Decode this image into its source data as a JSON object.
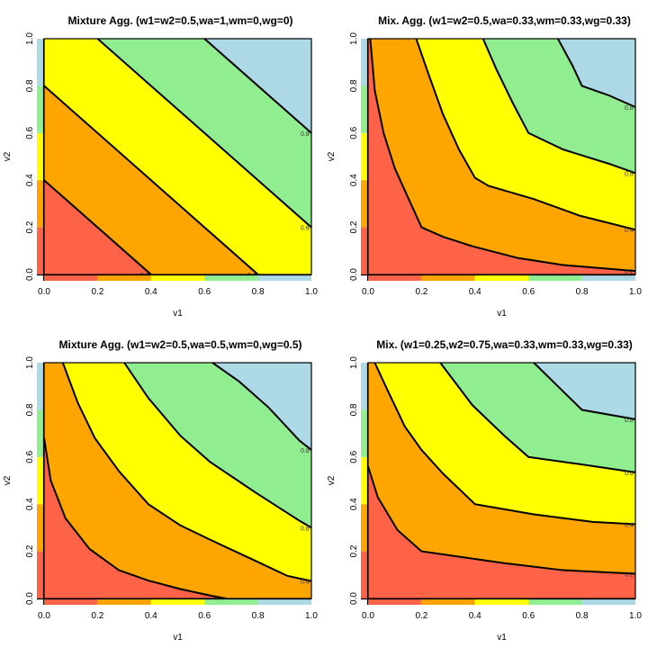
{
  "chart_data": [
    {
      "type": "contour",
      "title": "Mixture Agg. (w1=w2=0.5,wa=1,wm=0,wg=0)",
      "xlabel": "v1",
      "ylabel": "v2",
      "xlim": [
        0,
        1
      ],
      "ylim": [
        0,
        1
      ],
      "xticks": [
        "0.0",
        "0.2",
        "0.4",
        "0.6",
        "0.8",
        "1.0"
      ],
      "yticks": [
        "0.0",
        "0.2",
        "0.4",
        "0.6",
        "0.8",
        "1.0"
      ],
      "contours": [
        {
          "level": "0.2",
          "points": [
            [
              0,
              0.4
            ],
            [
              0.4,
              0
            ]
          ]
        },
        {
          "level": "0.4",
          "points": [
            [
              0,
              0.8
            ],
            [
              0.8,
              0
            ]
          ]
        },
        {
          "level": "0.6",
          "points": [
            [
              0.2,
              1
            ],
            [
              1,
              0.2
            ]
          ]
        },
        {
          "level": "0.8",
          "points": [
            [
              0.6,
              1
            ],
            [
              1,
              0.6
            ]
          ]
        }
      ]
    },
    {
      "type": "contour",
      "title": "Mix. Agg. (w1=w2=0.5,wa=0.33,wm=0.33,wg=0.33)",
      "xlabel": "v1",
      "ylabel": "v2",
      "xlim": [
        0,
        1
      ],
      "ylim": [
        0,
        1
      ],
      "xticks": [
        "0.0",
        "0.2",
        "0.4",
        "0.6",
        "0.8",
        "1.0"
      ],
      "yticks": [
        "0.0",
        "0.2",
        "0.4",
        "0.6",
        "0.8",
        "1.0"
      ],
      "contours": [
        {
          "level": "0.2",
          "points": [
            [
              0.008,
              1
            ],
            [
              0.025,
              0.78
            ],
            [
              0.058,
              0.6
            ],
            [
              0.1,
              0.45
            ],
            [
              0.16,
              0.3
            ],
            [
              0.2,
              0.2
            ],
            [
              0.28,
              0.16
            ],
            [
              0.39,
              0.12
            ],
            [
              0.56,
              0.07
            ],
            [
              0.73,
              0.04
            ],
            [
              1,
              0.015
            ]
          ]
        },
        {
          "level": "0.4",
          "points": [
            [
              0.18,
              1
            ],
            [
              0.226,
              0.85
            ],
            [
              0.28,
              0.68
            ],
            [
              0.34,
              0.53
            ],
            [
              0.4,
              0.41
            ],
            [
              0.45,
              0.376
            ],
            [
              0.62,
              0.32
            ],
            [
              0.79,
              0.25
            ],
            [
              1,
              0.19
            ]
          ]
        },
        {
          "level": "0.6",
          "points": [
            [
              0.43,
              1
            ],
            [
              0.48,
              0.87
            ],
            [
              0.54,
              0.73
            ],
            [
              0.6,
              0.6
            ],
            [
              0.73,
              0.53
            ],
            [
              0.9,
              0.47
            ],
            [
              1,
              0.43
            ]
          ]
        },
        {
          "level": "0.8",
          "points": [
            [
              0.71,
              1
            ],
            [
              0.765,
              0.885
            ],
            [
              0.8,
              0.8
            ],
            [
              0.9,
              0.76
            ],
            [
              1,
              0.71
            ]
          ]
        }
      ]
    },
    {
      "type": "contour",
      "title": "Mixture Agg. (w1=w2=0.5,wa=0.5,wm=0,wg=0.5)",
      "xlabel": "v1",
      "ylabel": "v2",
      "xlim": [
        0,
        1
      ],
      "ylim": [
        0,
        1
      ],
      "xticks": [
        "0.0",
        "0.2",
        "0.4",
        "0.6",
        "0.8",
        "1.0"
      ],
      "yticks": [
        "0.0",
        "0.2",
        "0.4",
        "0.6",
        "0.8",
        "1.0"
      ],
      "contours": [
        {
          "level": "0.2",
          "points": [
            [
              0,
              0.68
            ],
            [
              0.025,
              0.5
            ],
            [
              0.08,
              0.34
            ],
            [
              0.17,
              0.21
            ],
            [
              0.28,
              0.12
            ],
            [
              0.39,
              0.076
            ],
            [
              0.51,
              0.04
            ],
            [
              0.62,
              0.013
            ],
            [
              0.68,
              0
            ]
          ]
        },
        {
          "level": "0.4",
          "points": [
            [
              0.07,
              1
            ],
            [
              0.126,
              0.83
            ],
            [
              0.19,
              0.68
            ],
            [
              0.28,
              0.54
            ],
            [
              0.39,
              0.4
            ],
            [
              0.51,
              0.31
            ],
            [
              0.62,
              0.25
            ],
            [
              0.79,
              0.16
            ],
            [
              0.91,
              0.096
            ],
            [
              1,
              0.074
            ]
          ]
        },
        {
          "level": "0.6",
          "points": [
            [
              0.3,
              1
            ],
            [
              0.39,
              0.85
            ],
            [
              0.51,
              0.69
            ],
            [
              0.62,
              0.58
            ],
            [
              0.79,
              0.45
            ],
            [
              0.955,
              0.33
            ],
            [
              1,
              0.3
            ]
          ]
        },
        {
          "level": "0.8",
          "points": [
            [
              0.63,
              1
            ],
            [
              0.73,
              0.92
            ],
            [
              0.84,
              0.81
            ],
            [
              0.955,
              0.67
            ],
            [
              1,
              0.63
            ]
          ]
        }
      ]
    },
    {
      "type": "contour",
      "title": "Mix. (w1=0.25,w2=0.75,wa=0.33,wm=0.33,wg=0.33)",
      "xlabel": "v1",
      "ylabel": "v2",
      "xlim": [
        0,
        1
      ],
      "ylim": [
        0,
        1
      ],
      "xticks": [
        "0.0",
        "0.2",
        "0.4",
        "0.6",
        "0.8",
        "1.0"
      ],
      "yticks": [
        "0.0",
        "0.2",
        "0.4",
        "0.6",
        "0.8",
        "1.0"
      ],
      "contours": [
        {
          "level": "0.2",
          "points": [
            [
              0,
              0.56
            ],
            [
              0.036,
              0.43
            ],
            [
              0.11,
              0.29
            ],
            [
              0.19,
              0.21
            ],
            [
              0.2,
              0.2
            ],
            [
              0.51,
              0.15
            ],
            [
              0.73,
              0.12
            ],
            [
              1,
              0.105
            ]
          ]
        },
        {
          "level": "0.4",
          "points": [
            [
              0.025,
              1
            ],
            [
              0.07,
              0.89
            ],
            [
              0.137,
              0.73
            ],
            [
              0.2,
              0.63
            ],
            [
              0.28,
              0.53
            ],
            [
              0.4,
              0.4
            ],
            [
              0.62,
              0.357
            ],
            [
              0.84,
              0.325
            ],
            [
              1,
              0.315
            ]
          ]
        },
        {
          "level": "0.6",
          "points": [
            [
              0.27,
              1
            ],
            [
              0.39,
              0.82
            ],
            [
              0.51,
              0.69
            ],
            [
              0.6,
              0.6
            ],
            [
              0.79,
              0.57
            ],
            [
              1,
              0.535
            ]
          ]
        },
        {
          "level": "0.8",
          "points": [
            [
              0.62,
              1
            ],
            [
              0.71,
              0.9
            ],
            [
              0.8,
              0.8
            ],
            [
              1,
              0.76
            ]
          ]
        }
      ]
    }
  ],
  "level_colors": [
    "#FF6347",
    "#FFA500",
    "#FFFF00",
    "#90EE90",
    "#ADD8E6"
  ]
}
